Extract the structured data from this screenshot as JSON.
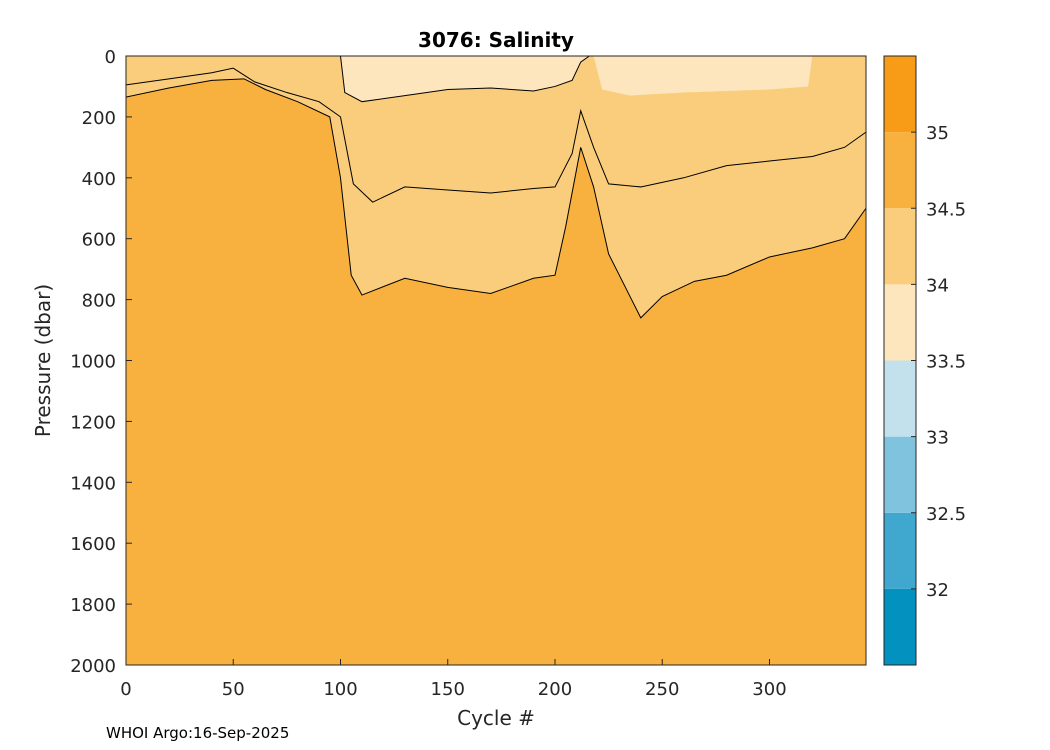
{
  "chart_data": {
    "type": "heatmap",
    "title": "3076:  Salinity",
    "xlabel": "Cycle #",
    "ylabel": "Pressure (dbar)",
    "xlim": [
      0,
      345
    ],
    "ylim": [
      2000,
      0
    ],
    "x_ticks": [
      0,
      50,
      100,
      150,
      200,
      250,
      300
    ],
    "y_ticks": [
      0,
      200,
      400,
      600,
      800,
      1000,
      1200,
      1400,
      1600,
      1800,
      2000
    ],
    "colorbar": {
      "ticks": [
        "32",
        "32.5",
        "33",
        "33.5",
        "34",
        "34.5",
        "35"
      ],
      "tick_values": [
        32,
        32.5,
        33,
        33.5,
        34,
        34.5,
        35
      ],
      "range": [
        31.5,
        35.5
      ],
      "bins": [
        {
          "from": 31.5,
          "to": 32.0,
          "color": "#0392c0"
        },
        {
          "from": 32.0,
          "to": 32.5,
          "color": "#40a7cf"
        },
        {
          "from": 32.5,
          "to": 33.0,
          "color": "#80c3df"
        },
        {
          "from": 33.0,
          "to": 33.5,
          "color": "#c2e1ec"
        },
        {
          "from": 33.5,
          "to": 34.0,
          "color": "#fde6bd"
        },
        {
          "from": 34.0,
          "to": 34.5,
          "color": "#f9cd7b"
        },
        {
          "from": 34.5,
          "to": 35.0,
          "color": "#f8b13f"
        },
        {
          "from": 35.0,
          "to": 35.5,
          "color": "#f89c17"
        }
      ]
    },
    "contours": [
      {
        "level": 33.5,
        "points": [
          [
            100,
            0
          ],
          [
            102,
            120
          ],
          [
            110,
            150
          ],
          [
            130,
            130
          ],
          [
            150,
            110
          ],
          [
            170,
            105
          ],
          [
            190,
            115
          ],
          [
            200,
            100
          ],
          [
            208,
            80
          ],
          [
            212,
            20
          ],
          [
            216,
            0
          ]
        ]
      },
      {
        "level": 34.0,
        "points": [
          [
            0,
            95
          ],
          [
            20,
            75
          ],
          [
            40,
            55
          ],
          [
            50,
            40
          ],
          [
            60,
            85
          ],
          [
            75,
            120
          ],
          [
            90,
            150
          ],
          [
            100,
            200
          ],
          [
            106,
            420
          ],
          [
            115,
            480
          ],
          [
            130,
            430
          ],
          [
            150,
            440
          ],
          [
            170,
            450
          ],
          [
            190,
            435
          ],
          [
            200,
            430
          ],
          [
            208,
            320
          ],
          [
            212,
            180
          ],
          [
            218,
            300
          ],
          [
            225,
            420
          ],
          [
            240,
            430
          ],
          [
            260,
            400
          ],
          [
            280,
            360
          ],
          [
            300,
            345
          ],
          [
            320,
            330
          ],
          [
            335,
            300
          ],
          [
            345,
            250
          ]
        ]
      },
      {
        "level": 34.5,
        "points": [
          [
            0,
            135
          ],
          [
            20,
            105
          ],
          [
            40,
            80
          ],
          [
            55,
            75
          ],
          [
            65,
            110
          ],
          [
            80,
            150
          ],
          [
            95,
            200
          ],
          [
            100,
            400
          ],
          [
            105,
            720
          ],
          [
            110,
            785
          ],
          [
            130,
            730
          ],
          [
            150,
            760
          ],
          [
            170,
            780
          ],
          [
            190,
            730
          ],
          [
            200,
            720
          ],
          [
            205,
            560
          ],
          [
            212,
            300
          ],
          [
            218,
            430
          ],
          [
            225,
            650
          ],
          [
            235,
            790
          ],
          [
            240,
            860
          ],
          [
            250,
            790
          ],
          [
            265,
            740
          ],
          [
            280,
            720
          ],
          [
            300,
            660
          ],
          [
            320,
            630
          ],
          [
            335,
            600
          ],
          [
            345,
            500
          ]
        ]
      }
    ],
    "colors": {
      "profile_background": "#f8b13f",
      "contour": "#000000"
    }
  },
  "footer": "WHOI Argo:16-Sep-2025"
}
